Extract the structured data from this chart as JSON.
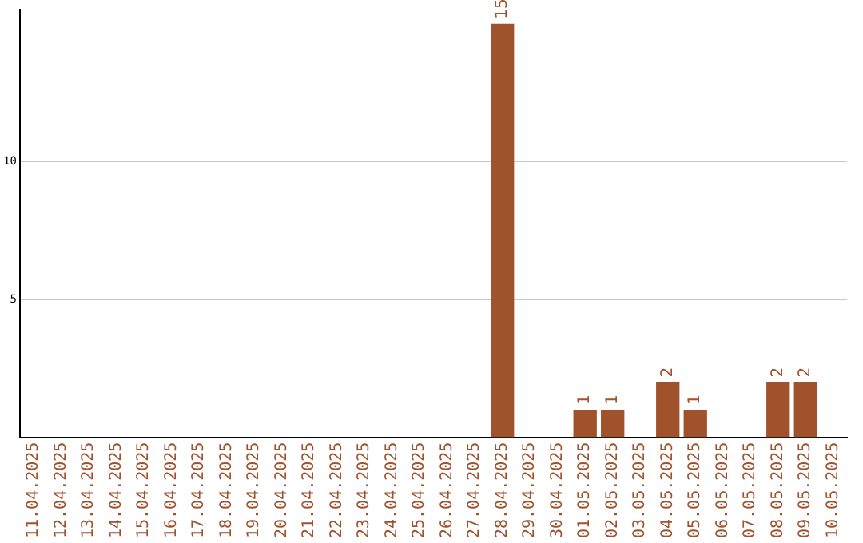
{
  "chart_data": {
    "type": "bar",
    "categories": [
      "11.04.2025",
      "12.04.2025",
      "13.04.2025",
      "14.04.2025",
      "15.04.2025",
      "16.04.2025",
      "17.04.2025",
      "18.04.2025",
      "19.04.2025",
      "20.04.2025",
      "21.04.2025",
      "22.04.2025",
      "23.04.2025",
      "24.04.2025",
      "25.04.2025",
      "26.04.2025",
      "27.04.2025",
      "28.04.2025",
      "29.04.2025",
      "30.04.2025",
      "01.05.2025",
      "02.05.2025",
      "03.05.2025",
      "04.05.2025",
      "05.05.2025",
      "06.05.2025",
      "07.05.2025",
      "08.05.2025",
      "09.05.2025",
      "10.05.2025"
    ],
    "values": [
      0,
      0,
      0,
      0,
      0,
      0,
      0,
      0,
      0,
      0,
      0,
      0,
      0,
      0,
      0,
      0,
      0,
      15,
      0,
      0,
      1,
      1,
      0,
      2,
      1,
      0,
      0,
      2,
      2,
      0
    ],
    "value_labels": [
      null,
      null,
      null,
      null,
      null,
      null,
      null,
      null,
      null,
      null,
      null,
      null,
      null,
      null,
      null,
      null,
      null,
      "15",
      null,
      null,
      "1",
      "1",
      null,
      "2",
      "1",
      null,
      null,
      "2",
      "2",
      null
    ],
    "color": "#a0522d",
    "ylim": [
      0,
      15.5
    ],
    "yticks": [
      5,
      10
    ],
    "grid": "y",
    "legend": false
  }
}
